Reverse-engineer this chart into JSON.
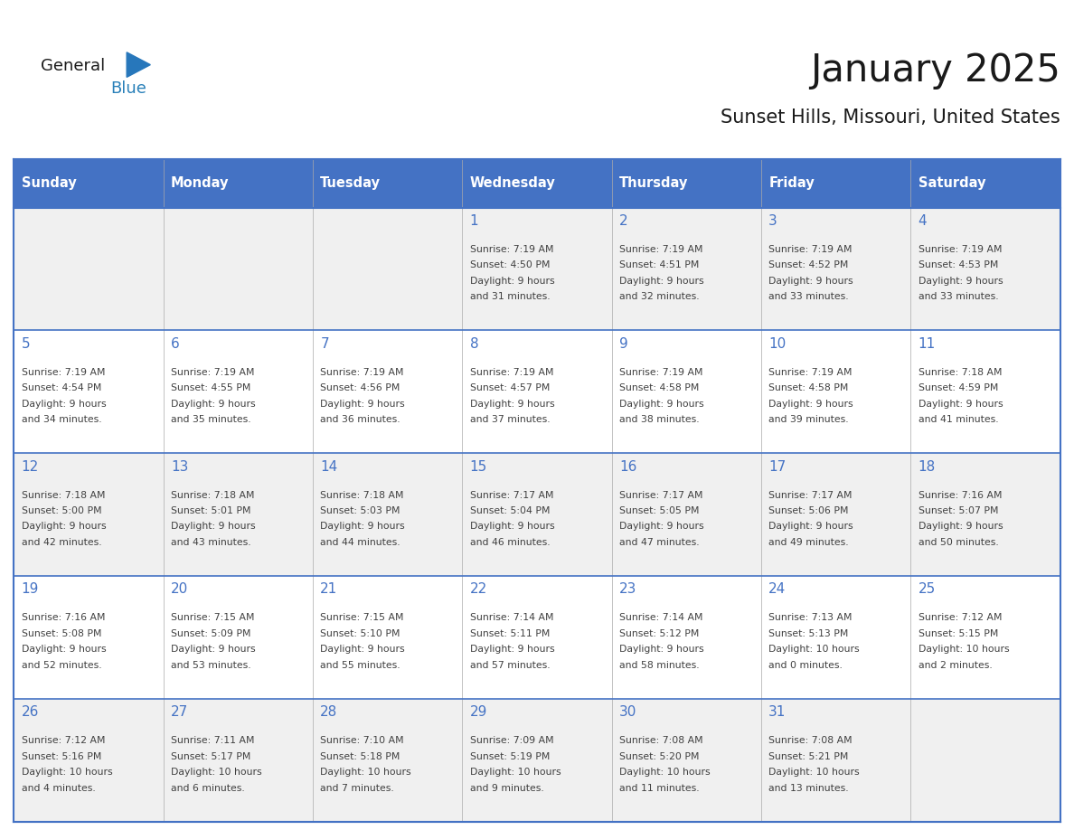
{
  "title": "January 2025",
  "subtitle": "Sunset Hills, Missouri, United States",
  "days_of_week": [
    "Sunday",
    "Monday",
    "Tuesday",
    "Wednesday",
    "Thursday",
    "Friday",
    "Saturday"
  ],
  "header_bg": "#4472C4",
  "header_text_color": "#FFFFFF",
  "row_bg_odd": "#F0F0F0",
  "row_bg_even": "#FFFFFF",
  "day_num_color": "#4472C4",
  "cell_text_color": "#404040",
  "grid_line_color": "#4472C4",
  "title_color": "#1a1a1a",
  "subtitle_color": "#1a1a1a",
  "logo_general_color": "#1a1a1a",
  "logo_blue_color": "#2980B9",
  "calendar_data": [
    [
      null,
      null,
      null,
      {
        "day": 1,
        "sunrise": "7:19 AM",
        "sunset": "4:50 PM",
        "daylight": "9 hours and 31 minutes."
      },
      {
        "day": 2,
        "sunrise": "7:19 AM",
        "sunset": "4:51 PM",
        "daylight": "9 hours and 32 minutes."
      },
      {
        "day": 3,
        "sunrise": "7:19 AM",
        "sunset": "4:52 PM",
        "daylight": "9 hours and 33 minutes."
      },
      {
        "day": 4,
        "sunrise": "7:19 AM",
        "sunset": "4:53 PM",
        "daylight": "9 hours and 33 minutes."
      }
    ],
    [
      {
        "day": 5,
        "sunrise": "7:19 AM",
        "sunset": "4:54 PM",
        "daylight": "9 hours and 34 minutes."
      },
      {
        "day": 6,
        "sunrise": "7:19 AM",
        "sunset": "4:55 PM",
        "daylight": "9 hours and 35 minutes."
      },
      {
        "day": 7,
        "sunrise": "7:19 AM",
        "sunset": "4:56 PM",
        "daylight": "9 hours and 36 minutes."
      },
      {
        "day": 8,
        "sunrise": "7:19 AM",
        "sunset": "4:57 PM",
        "daylight": "9 hours and 37 minutes."
      },
      {
        "day": 9,
        "sunrise": "7:19 AM",
        "sunset": "4:58 PM",
        "daylight": "9 hours and 38 minutes."
      },
      {
        "day": 10,
        "sunrise": "7:19 AM",
        "sunset": "4:58 PM",
        "daylight": "9 hours and 39 minutes."
      },
      {
        "day": 11,
        "sunrise": "7:18 AM",
        "sunset": "4:59 PM",
        "daylight": "9 hours and 41 minutes."
      }
    ],
    [
      {
        "day": 12,
        "sunrise": "7:18 AM",
        "sunset": "5:00 PM",
        "daylight": "9 hours and 42 minutes."
      },
      {
        "day": 13,
        "sunrise": "7:18 AM",
        "sunset": "5:01 PM",
        "daylight": "9 hours and 43 minutes."
      },
      {
        "day": 14,
        "sunrise": "7:18 AM",
        "sunset": "5:03 PM",
        "daylight": "9 hours and 44 minutes."
      },
      {
        "day": 15,
        "sunrise": "7:17 AM",
        "sunset": "5:04 PM",
        "daylight": "9 hours and 46 minutes."
      },
      {
        "day": 16,
        "sunrise": "7:17 AM",
        "sunset": "5:05 PM",
        "daylight": "9 hours and 47 minutes."
      },
      {
        "day": 17,
        "sunrise": "7:17 AM",
        "sunset": "5:06 PM",
        "daylight": "9 hours and 49 minutes."
      },
      {
        "day": 18,
        "sunrise": "7:16 AM",
        "sunset": "5:07 PM",
        "daylight": "9 hours and 50 minutes."
      }
    ],
    [
      {
        "day": 19,
        "sunrise": "7:16 AM",
        "sunset": "5:08 PM",
        "daylight": "9 hours and 52 minutes."
      },
      {
        "day": 20,
        "sunrise": "7:15 AM",
        "sunset": "5:09 PM",
        "daylight": "9 hours and 53 minutes."
      },
      {
        "day": 21,
        "sunrise": "7:15 AM",
        "sunset": "5:10 PM",
        "daylight": "9 hours and 55 minutes."
      },
      {
        "day": 22,
        "sunrise": "7:14 AM",
        "sunset": "5:11 PM",
        "daylight": "9 hours and 57 minutes."
      },
      {
        "day": 23,
        "sunrise": "7:14 AM",
        "sunset": "5:12 PM",
        "daylight": "9 hours and 58 minutes."
      },
      {
        "day": 24,
        "sunrise": "7:13 AM",
        "sunset": "5:13 PM",
        "daylight": "10 hours and 0 minutes."
      },
      {
        "day": 25,
        "sunrise": "7:12 AM",
        "sunset": "5:15 PM",
        "daylight": "10 hours and 2 minutes."
      }
    ],
    [
      {
        "day": 26,
        "sunrise": "7:12 AM",
        "sunset": "5:16 PM",
        "daylight": "10 hours and 4 minutes."
      },
      {
        "day": 27,
        "sunrise": "7:11 AM",
        "sunset": "5:17 PM",
        "daylight": "10 hours and 6 minutes."
      },
      {
        "day": 28,
        "sunrise": "7:10 AM",
        "sunset": "5:18 PM",
        "daylight": "10 hours and 7 minutes."
      },
      {
        "day": 29,
        "sunrise": "7:09 AM",
        "sunset": "5:19 PM",
        "daylight": "10 hours and 9 minutes."
      },
      {
        "day": 30,
        "sunrise": "7:08 AM",
        "sunset": "5:20 PM",
        "daylight": "10 hours and 11 minutes."
      },
      {
        "day": 31,
        "sunrise": "7:08 AM",
        "sunset": "5:21 PM",
        "daylight": "10 hours and 13 minutes."
      },
      null
    ]
  ]
}
